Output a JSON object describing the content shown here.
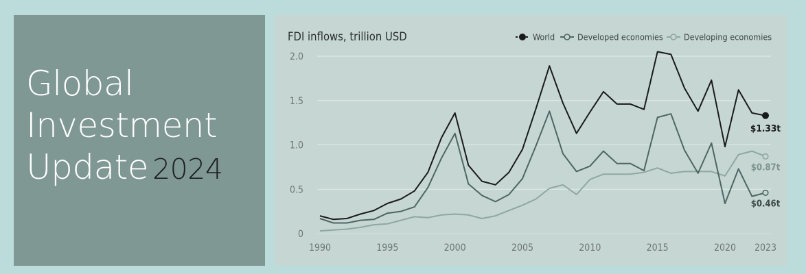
{
  "cover": {
    "title_lines": [
      "Global",
      "Investment",
      "Update"
    ],
    "year": "2024"
  },
  "colors": {
    "page_bg": "#bcdcdc",
    "cover_bg": "#7f9894",
    "chart_bg": "#c5d6d3",
    "world": "#1a1a1a",
    "developed": "#4e6663",
    "developing": "#8fa7a2",
    "grid": "#e4eeec",
    "text": "#2b2f2f"
  },
  "chart_data": {
    "type": "line",
    "title": "FDI inflows, trillion USD",
    "legend_position": "top-right",
    "grid": true,
    "x": [
      1990,
      1991,
      1992,
      1993,
      1994,
      1995,
      1996,
      1997,
      1998,
      1999,
      2000,
      2001,
      2002,
      2003,
      2004,
      2005,
      2006,
      2007,
      2008,
      2009,
      2010,
      2011,
      2012,
      2013,
      2014,
      2015,
      2016,
      2017,
      2018,
      2019,
      2020,
      2021,
      2022,
      2023
    ],
    "xticks": [
      "1990",
      "1995",
      "2000",
      "2005",
      "2010",
      "2015",
      "2020",
      "2023"
    ],
    "yticks": [
      "0",
      "0.5",
      "1.0",
      "1.5",
      "2.0"
    ],
    "ylim": [
      0,
      2.0
    ],
    "xlim": [
      1990,
      2023
    ],
    "series": [
      {
        "name": "World",
        "key": "world",
        "values": [
          0.2,
          0.16,
          0.17,
          0.22,
          0.26,
          0.34,
          0.39,
          0.48,
          0.69,
          1.08,
          1.36,
          0.77,
          0.59,
          0.55,
          0.69,
          0.95,
          1.41,
          1.89,
          1.47,
          1.13,
          1.37,
          1.6,
          1.46,
          1.46,
          1.4,
          2.05,
          2.02,
          1.64,
          1.38,
          1.73,
          0.98,
          1.62,
          1.36,
          1.33
        ],
        "end_label": "$1.33t"
      },
      {
        "name": "Developed economies",
        "key": "developed",
        "values": [
          0.17,
          0.12,
          0.12,
          0.15,
          0.16,
          0.23,
          0.25,
          0.3,
          0.52,
          0.85,
          1.13,
          0.56,
          0.43,
          0.36,
          0.44,
          0.62,
          0.99,
          1.38,
          0.9,
          0.7,
          0.76,
          0.93,
          0.79,
          0.79,
          0.71,
          1.31,
          1.35,
          0.94,
          0.68,
          1.02,
          0.34,
          0.73,
          0.42,
          0.46
        ],
        "end_label": "$0.46t"
      },
      {
        "name": "Developing economies",
        "key": "developing",
        "values": [
          0.03,
          0.04,
          0.05,
          0.07,
          0.1,
          0.11,
          0.15,
          0.19,
          0.18,
          0.21,
          0.22,
          0.21,
          0.17,
          0.2,
          0.26,
          0.32,
          0.39,
          0.51,
          0.55,
          0.44,
          0.61,
          0.67,
          0.67,
          0.67,
          0.69,
          0.74,
          0.68,
          0.7,
          0.7,
          0.7,
          0.65,
          0.89,
          0.93,
          0.87
        ],
        "end_label": "$0.87t"
      }
    ]
  }
}
